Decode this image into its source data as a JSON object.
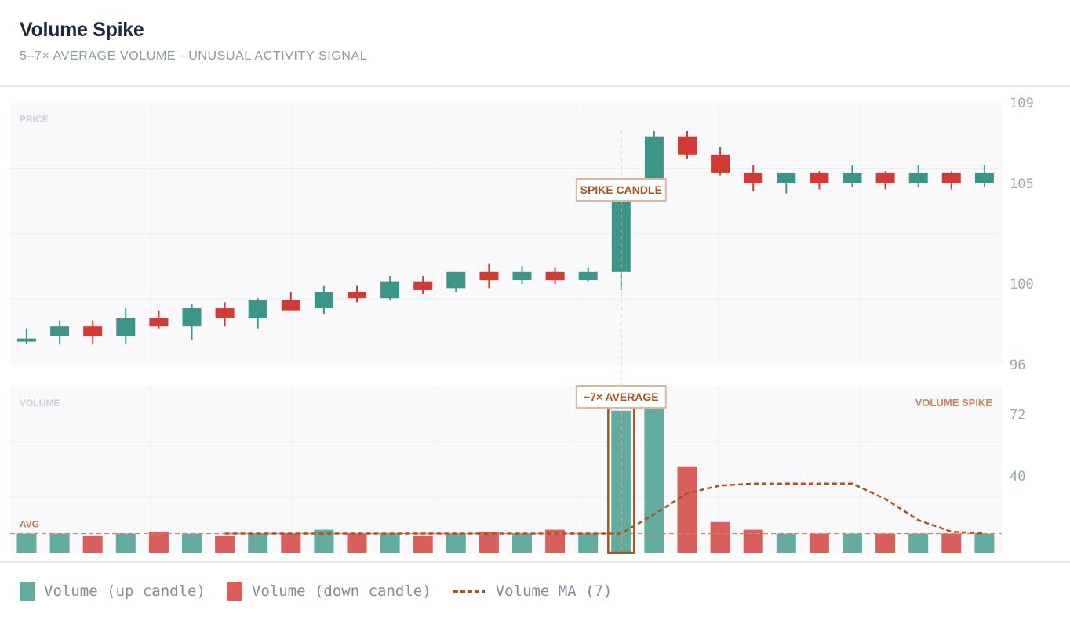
{
  "header": {
    "title": "Volume Spike",
    "subtitle": "5–7× AVERAGE VOLUME · UNUSUAL ACTIVITY SIGNAL"
  },
  "colors": {
    "up": "#3d9489",
    "down": "#d23a34",
    "vol_up": "#64aba1",
    "vol_down": "#d95f5c",
    "accent": "#a85420",
    "panel_bg": "#f9f9fb"
  },
  "chart_data": {
    "type": "candlestick",
    "price_panel": {
      "label": "PRICE",
      "ylim": [
        96,
        109
      ],
      "ticks": [
        96,
        100,
        105,
        109
      ],
      "candles": [
        {
          "o": 97.2,
          "h": 97.8,
          "l": 97.0,
          "c": 97.3
        },
        {
          "o": 97.4,
          "h": 98.2,
          "l": 97.0,
          "c": 97.9
        },
        {
          "o": 97.9,
          "h": 98.2,
          "l": 97.0,
          "c": 97.4
        },
        {
          "o": 97.4,
          "h": 98.8,
          "l": 97.0,
          "c": 98.3
        },
        {
          "o": 98.3,
          "h": 98.7,
          "l": 97.8,
          "c": 97.9
        },
        {
          "o": 97.9,
          "h": 99.0,
          "l": 97.2,
          "c": 98.8
        },
        {
          "o": 98.8,
          "h": 99.1,
          "l": 97.9,
          "c": 98.3
        },
        {
          "o": 98.3,
          "h": 99.3,
          "l": 97.8,
          "c": 99.2
        },
        {
          "o": 99.2,
          "h": 99.6,
          "l": 98.7,
          "c": 98.7
        },
        {
          "o": 98.8,
          "h": 99.9,
          "l": 98.5,
          "c": 99.6
        },
        {
          "o": 99.6,
          "h": 99.9,
          "l": 99.1,
          "c": 99.3
        },
        {
          "o": 99.3,
          "h": 100.4,
          "l": 99.2,
          "c": 100.1
        },
        {
          "o": 100.1,
          "h": 100.4,
          "l": 99.5,
          "c": 99.7
        },
        {
          "o": 99.8,
          "h": 100.6,
          "l": 99.6,
          "c": 100.6
        },
        {
          "o": 100.6,
          "h": 101.0,
          "l": 99.8,
          "c": 100.2
        },
        {
          "o": 100.2,
          "h": 100.9,
          "l": 100.0,
          "c": 100.6
        },
        {
          "o": 100.6,
          "h": 100.8,
          "l": 100.0,
          "c": 100.2
        },
        {
          "o": 100.2,
          "h": 100.8,
          "l": 100.1,
          "c": 100.6
        },
        {
          "o": 100.6,
          "h": 104.6,
          "l": 99.7,
          "c": 104.4
        },
        {
          "o": 104.4,
          "h": 107.6,
          "l": 104.4,
          "c": 107.3
        },
        {
          "o": 107.3,
          "h": 107.6,
          "l": 106.2,
          "c": 106.4
        },
        {
          "o": 106.4,
          "h": 106.8,
          "l": 105.4,
          "c": 105.5
        },
        {
          "o": 105.5,
          "h": 105.9,
          "l": 104.6,
          "c": 105.0
        },
        {
          "o": 105.0,
          "h": 105.5,
          "l": 104.5,
          "c": 105.5
        },
        {
          "o": 105.5,
          "h": 105.6,
          "l": 104.7,
          "c": 105.0
        },
        {
          "o": 105.0,
          "h": 105.9,
          "l": 104.8,
          "c": 105.5
        },
        {
          "o": 105.5,
          "h": 105.6,
          "l": 104.7,
          "c": 105.0
        },
        {
          "o": 105.0,
          "h": 105.9,
          "l": 104.8,
          "c": 105.5
        },
        {
          "o": 105.5,
          "h": 105.6,
          "l": 104.7,
          "c": 105.0
        },
        {
          "o": 105.0,
          "h": 105.9,
          "l": 104.8,
          "c": 105.5
        }
      ]
    },
    "volume_panel": {
      "label": "VOLUME",
      "right_label": "VOLUME SPIKE",
      "ylim": [
        0,
        80
      ],
      "ticks": [
        40,
        72
      ],
      "avg_level": 10,
      "avg_label": "AVG",
      "volumes": [
        10,
        10,
        9,
        10,
        11,
        10,
        9,
        10,
        10,
        12,
        10,
        10,
        9,
        10,
        11,
        10,
        12,
        10,
        74,
        80,
        45,
        16,
        12,
        10,
        10,
        10,
        10,
        10,
        10,
        10
      ],
      "ma_start_index": 6,
      "ma": [
        10,
        10,
        10,
        10,
        10,
        10,
        10,
        10,
        10,
        10,
        10,
        10,
        10,
        20,
        31,
        35,
        36,
        36,
        36,
        36,
        28,
        17,
        11,
        10
      ],
      "spike_index": 18
    },
    "annotations": {
      "spike_candle": "SPIKE CANDLE",
      "avg_multiple": "~7× AVERAGE"
    },
    "legend": [
      {
        "label": "Volume (up candle)",
        "type": "up"
      },
      {
        "label": "Volume (down candle)",
        "type": "down"
      },
      {
        "label": "Volume MA (7)",
        "type": "ma"
      }
    ]
  }
}
